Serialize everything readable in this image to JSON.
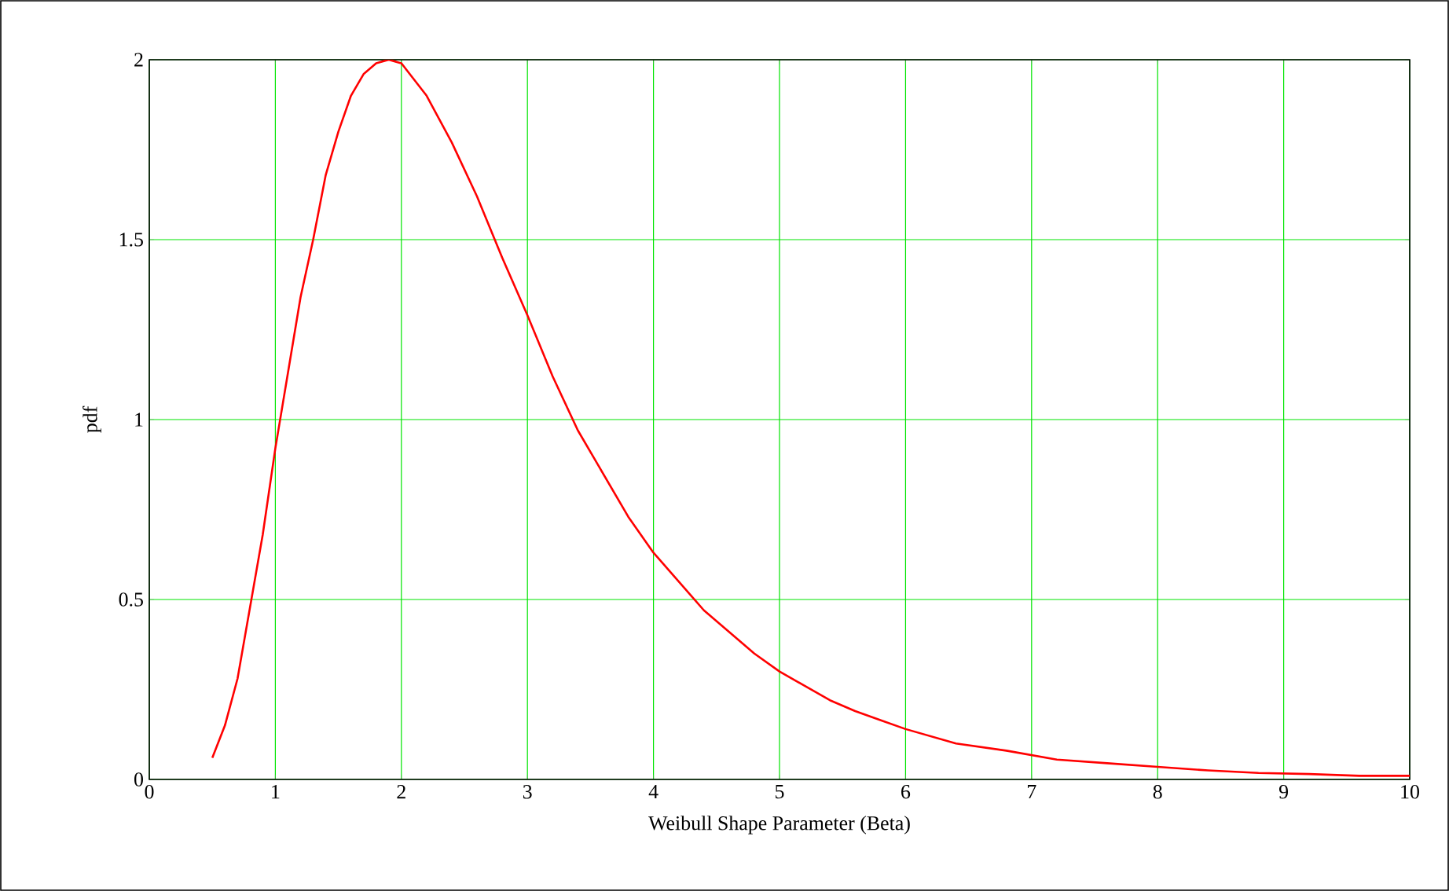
{
  "chart_data": {
    "type": "line",
    "xlabel": "Weibull Shape Parameter (Beta)",
    "ylabel": "pdf",
    "x": [
      0.5,
      0.6,
      0.7,
      0.8,
      0.9,
      1.0,
      1.1,
      1.2,
      1.3,
      1.4,
      1.5,
      1.6,
      1.7,
      1.8,
      1.9,
      2.0,
      2.2,
      2.4,
      2.6,
      2.8,
      3.0,
      3.2,
      3.4,
      3.6,
      3.8,
      4.0,
      4.2,
      4.4,
      4.6,
      4.8,
      5.0,
      5.2,
      5.4,
      5.6,
      5.8,
      6.0,
      6.4,
      6.8,
      7.2,
      7.6,
      8.0,
      8.4,
      8.8,
      9.2,
      9.6,
      10.0
    ],
    "series": [
      {
        "color": "#ff0000",
        "values": [
          0.06,
          0.15,
          0.28,
          0.48,
          0.68,
          0.92,
          1.13,
          1.34,
          1.5,
          1.68,
          1.8,
          1.9,
          1.96,
          1.99,
          2.0,
          1.99,
          1.9,
          1.77,
          1.62,
          1.45,
          1.29,
          1.12,
          0.97,
          0.85,
          0.73,
          0.63,
          0.55,
          0.47,
          0.41,
          0.35,
          0.3,
          0.26,
          0.22,
          0.19,
          0.165,
          0.14,
          0.1,
          0.08,
          0.055,
          0.045,
          0.035,
          0.025,
          0.018,
          0.015,
          0.01,
          0.01
        ]
      }
    ],
    "xlim": [
      0,
      10
    ],
    "ylim": [
      0,
      2
    ],
    "xticks": [
      0,
      1,
      2,
      3,
      4,
      5,
      6,
      7,
      8,
      9,
      10
    ],
    "yticks": [
      0,
      0.5,
      1,
      1.5,
      2
    ],
    "grid": true,
    "marker": "none",
    "line_style": "solid"
  }
}
